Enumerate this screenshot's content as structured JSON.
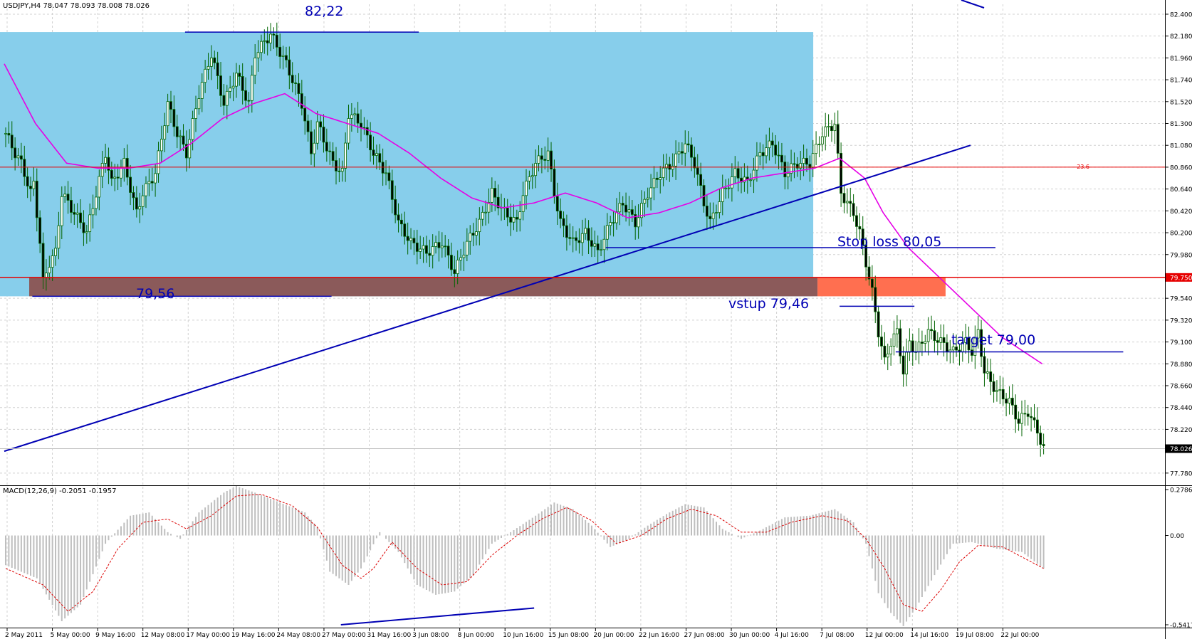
{
  "symbol_info": "USDJPY,H4  78.047 78.093 78.008 78.026",
  "price_axis": {
    "ticks": [
      "82.400",
      "82.180",
      "81.960",
      "81.740",
      "81.520",
      "81.300",
      "81.080",
      "80.860",
      "80.640",
      "80.420",
      "80.200",
      "79.980",
      "79.750",
      "79.540",
      "79.320",
      "79.100",
      "78.880",
      "78.660",
      "78.440",
      "78.220",
      "78.026",
      "77.780"
    ],
    "current_price": "78.026",
    "level_tag": "79.750"
  },
  "macd_panel": {
    "label": "MACD(12,26,9) -0.2051 -0.1957",
    "ticks": [
      "0.2786",
      "0.00",
      "-0.5417"
    ]
  },
  "time_axis": [
    "2 May 2011",
    "5 May 00:00",
    "9 May 16:00",
    "12 May 08:00",
    "17 May 00:00",
    "19 May 16:00",
    "24 May 08:00",
    "27 May 00:00",
    "31 May 16:00",
    "3 Jun 08:00",
    "8 Jun 00:00",
    "10 Jun 16:00",
    "15 Jun 08:00",
    "20 Jun 00:00",
    "22 Jun 16:00",
    "27 Jun 08:00",
    "30 Jun 00:00",
    "4 Jul 16:00",
    "7 Jul 08:00",
    "12 Jul 00:00",
    "14 Jul 16:00",
    "19 Jul 08:00",
    "22 Jul 00:00"
  ],
  "annotations": {
    "high_label": "82,22",
    "low_label": "79,56",
    "stop_loss": "Stop loss 80,05",
    "entry": "vstup 79,46",
    "target": "target 79,00",
    "fib_label": "23.6"
  },
  "colors": {
    "range_box": "#87CEEB",
    "resistance_zone": "#8B5A5A",
    "resistance_zone_right": "#FF6F50",
    "trend_line": "#0000B4",
    "ma_line": "#E600E6",
    "candle": "#006400",
    "macd_hist": "#BEBEBE",
    "macd_signal": "#DC0000",
    "level_line": "#E60000"
  },
  "chart_data": {
    "type": "candlestick",
    "title": "",
    "ylim": [
      77.7,
      82.5
    ],
    "price_path": [
      [
        0,
        81.2
      ],
      [
        3,
        81.0
      ],
      [
        5,
        80.9
      ],
      [
        8,
        80.6
      ],
      [
        9,
        80.7
      ],
      [
        11,
        80.1
      ],
      [
        12,
        79.7
      ],
      [
        14,
        79.9
      ],
      [
        16,
        80.0
      ],
      [
        18,
        80.6
      ],
      [
        22,
        80.4
      ],
      [
        26,
        80.2
      ],
      [
        29,
        80.6
      ],
      [
        32,
        81.0
      ],
      [
        34,
        80.7
      ],
      [
        38,
        80.9
      ],
      [
        42,
        80.4
      ],
      [
        44,
        80.6
      ],
      [
        48,
        80.8
      ],
      [
        52,
        81.5
      ],
      [
        55,
        81.2
      ],
      [
        58,
        81.0
      ],
      [
        62,
        81.6
      ],
      [
        66,
        82.0
      ],
      [
        70,
        81.5
      ],
      [
        74,
        81.8
      ],
      [
        78,
        81.5
      ],
      [
        80,
        82.0
      ],
      [
        85,
        82.2
      ],
      [
        90,
        81.9
      ],
      [
        95,
        81.5
      ],
      [
        98,
        81.0
      ],
      [
        100,
        81.3
      ],
      [
        105,
        80.9
      ],
      [
        108,
        80.8
      ],
      [
        110,
        81.4
      ],
      [
        114,
        81.3
      ],
      [
        118,
        81.0
      ],
      [
        122,
        80.8
      ],
      [
        126,
        80.3
      ],
      [
        130,
        80.1
      ],
      [
        135,
        80.0
      ],
      [
        140,
        80.1
      ],
      [
        144,
        79.8
      ],
      [
        148,
        80.1
      ],
      [
        152,
        80.3
      ],
      [
        156,
        80.6
      ],
      [
        160,
        80.4
      ],
      [
        164,
        80.3
      ],
      [
        166,
        80.6
      ],
      [
        170,
        80.9
      ],
      [
        174,
        81.0
      ],
      [
        176,
        80.6
      ],
      [
        178,
        80.3
      ],
      [
        182,
        80.1
      ],
      [
        186,
        80.2
      ],
      [
        190,
        80.0
      ],
      [
        194,
        80.3
      ],
      [
        198,
        80.5
      ],
      [
        202,
        80.3
      ],
      [
        206,
        80.6
      ],
      [
        210,
        80.8
      ],
      [
        214,
        80.9
      ],
      [
        218,
        81.1
      ],
      [
        221,
        80.9
      ],
      [
        224,
        80.5
      ],
      [
        226,
        80.3
      ],
      [
        230,
        80.6
      ],
      [
        234,
        80.8
      ],
      [
        238,
        80.7
      ],
      [
        242,
        81.0
      ],
      [
        246,
        81.1
      ],
      [
        250,
        80.8
      ],
      [
        254,
        80.9
      ],
      [
        258,
        80.9
      ],
      [
        262,
        81.2
      ],
      [
        266,
        81.3
      ],
      [
        268,
        80.6
      ],
      [
        272,
        80.4
      ],
      [
        274,
        80.2
      ],
      [
        276,
        79.9
      ],
      [
        278,
        79.6
      ],
      [
        280,
        79.2
      ],
      [
        282,
        78.9
      ],
      [
        284,
        79.1
      ],
      [
        286,
        79.2
      ],
      [
        288,
        78.8
      ],
      [
        290,
        79.1
      ],
      [
        292,
        79.0
      ],
      [
        296,
        79.2
      ],
      [
        300,
        79.1
      ],
      [
        304,
        79.0
      ],
      [
        308,
        79.1
      ],
      [
        310,
        79.0
      ],
      [
        312,
        79.2
      ],
      [
        314,
        78.8
      ],
      [
        318,
        78.6
      ],
      [
        322,
        78.5
      ],
      [
        325,
        78.3
      ],
      [
        328,
        78.4
      ],
      [
        331,
        78.2
      ],
      [
        333,
        78.026
      ]
    ],
    "bars": 334,
    "moving_average": [
      [
        0,
        81.9
      ],
      [
        10,
        81.3
      ],
      [
        20,
        80.9
      ],
      [
        30,
        80.85
      ],
      [
        40,
        80.85
      ],
      [
        50,
        80.9
      ],
      [
        60,
        81.1
      ],
      [
        70,
        81.35
      ],
      [
        80,
        81.5
      ],
      [
        90,
        81.6
      ],
      [
        100,
        81.4
      ],
      [
        110,
        81.3
      ],
      [
        120,
        81.2
      ],
      [
        130,
        81.0
      ],
      [
        140,
        80.75
      ],
      [
        150,
        80.55
      ],
      [
        160,
        80.45
      ],
      [
        170,
        80.5
      ],
      [
        180,
        80.6
      ],
      [
        190,
        80.5
      ],
      [
        200,
        80.35
      ],
      [
        210,
        80.4
      ],
      [
        220,
        80.5
      ],
      [
        230,
        80.65
      ],
      [
        240,
        80.75
      ],
      [
        250,
        80.8
      ],
      [
        260,
        80.85
      ],
      [
        268,
        80.95
      ],
      [
        276,
        80.75
      ],
      [
        282,
        80.4
      ],
      [
        290,
        80.05
      ],
      [
        300,
        79.75
      ],
      [
        310,
        79.45
      ],
      [
        320,
        79.15
      ],
      [
        333,
        78.88
      ]
    ],
    "levels": {
      "high": 82.22,
      "low": 79.56,
      "stop_loss": 80.05,
      "entry": 79.46,
      "target": 79.0,
      "fib": 80.86,
      "resistance": 79.75
    },
    "trend_line": [
      [
        0,
        78.0
      ],
      [
        310,
        81.08
      ]
    ],
    "macd": [
      [
        0,
        -0.18
      ],
      [
        10,
        -0.26
      ],
      [
        18,
        -0.52
      ],
      [
        24,
        -0.42
      ],
      [
        32,
        -0.05
      ],
      [
        40,
        0.12
      ],
      [
        46,
        0.14
      ],
      [
        52,
        0.02
      ],
      [
        56,
        -0.02
      ],
      [
        62,
        0.14
      ],
      [
        70,
        0.26
      ],
      [
        74,
        0.3
      ],
      [
        80,
        0.26
      ],
      [
        88,
        0.2
      ],
      [
        96,
        0.14
      ],
      [
        100,
        0.05
      ],
      [
        104,
        -0.22
      ],
      [
        110,
        -0.3
      ],
      [
        114,
        -0.2
      ],
      [
        120,
        0.02
      ],
      [
        126,
        -0.1
      ],
      [
        132,
        -0.3
      ],
      [
        138,
        -0.36
      ],
      [
        144,
        -0.34
      ],
      [
        150,
        -0.24
      ],
      [
        156,
        -0.05
      ],
      [
        162,
        0.02
      ],
      [
        170,
        0.12
      ],
      [
        176,
        0.2
      ],
      [
        182,
        0.16
      ],
      [
        188,
        0.06
      ],
      [
        194,
        -0.07
      ],
      [
        200,
        -0.02
      ],
      [
        206,
        0.06
      ],
      [
        212,
        0.13
      ],
      [
        218,
        0.19
      ],
      [
        224,
        0.17
      ],
      [
        230,
        0.04
      ],
      [
        236,
        -0.02
      ],
      [
        242,
        0.03
      ],
      [
        250,
        0.11
      ],
      [
        258,
        0.12
      ],
      [
        266,
        0.16
      ],
      [
        272,
        0.08
      ],
      [
        276,
        -0.05
      ],
      [
        280,
        -0.35
      ],
      [
        284,
        -0.47
      ],
      [
        288,
        -0.55
      ],
      [
        292,
        -0.44
      ],
      [
        298,
        -0.24
      ],
      [
        304,
        -0.05
      ],
      [
        310,
        -0.04
      ],
      [
        318,
        -0.08
      ],
      [
        326,
        -0.1
      ],
      [
        333,
        -0.2
      ]
    ],
    "macd_signal": [
      [
        0,
        -0.2
      ],
      [
        12,
        -0.3
      ],
      [
        20,
        -0.46
      ],
      [
        28,
        -0.34
      ],
      [
        36,
        -0.08
      ],
      [
        44,
        0.08
      ],
      [
        52,
        0.1
      ],
      [
        58,
        0.04
      ],
      [
        66,
        0.12
      ],
      [
        74,
        0.24
      ],
      [
        82,
        0.25
      ],
      [
        92,
        0.18
      ],
      [
        100,
        0.05
      ],
      [
        108,
        -0.18
      ],
      [
        114,
        -0.26
      ],
      [
        118,
        -0.2
      ],
      [
        124,
        -0.04
      ],
      [
        132,
        -0.2
      ],
      [
        140,
        -0.3
      ],
      [
        148,
        -0.28
      ],
      [
        156,
        -0.12
      ],
      [
        164,
        0.0
      ],
      [
        172,
        0.1
      ],
      [
        180,
        0.17
      ],
      [
        188,
        0.09
      ],
      [
        196,
        -0.05
      ],
      [
        204,
        0.0
      ],
      [
        212,
        0.1
      ],
      [
        220,
        0.16
      ],
      [
        228,
        0.12
      ],
      [
        236,
        0.02
      ],
      [
        244,
        0.02
      ],
      [
        252,
        0.08
      ],
      [
        262,
        0.12
      ],
      [
        270,
        0.09
      ],
      [
        276,
        -0.02
      ],
      [
        282,
        -0.2
      ],
      [
        288,
        -0.42
      ],
      [
        294,
        -0.46
      ],
      [
        300,
        -0.33
      ],
      [
        306,
        -0.16
      ],
      [
        312,
        -0.06
      ],
      [
        320,
        -0.07
      ],
      [
        333,
        -0.2
      ]
    ]
  }
}
